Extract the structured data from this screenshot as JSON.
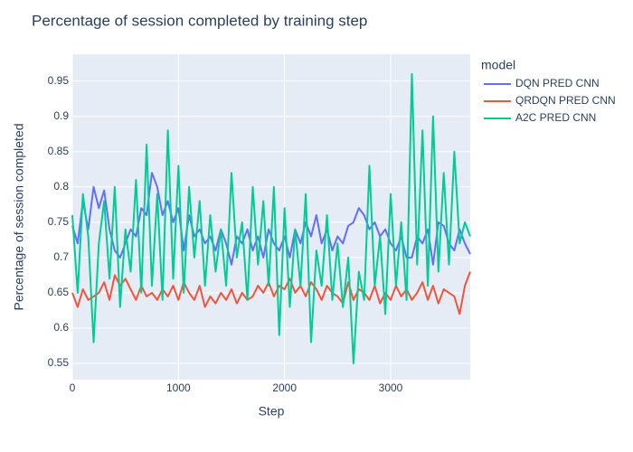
{
  "chart_data": {
    "type": "line",
    "title": "Percentage of session completed by training step",
    "x_label": "Step",
    "y_label": "Percentage of session completed",
    "legend_title": "model",
    "legend_position": "right",
    "grid": true,
    "x": [
      0,
      50,
      100,
      150,
      200,
      250,
      300,
      350,
      400,
      450,
      500,
      550,
      600,
      650,
      700,
      750,
      800,
      850,
      900,
      950,
      1000,
      1050,
      1100,
      1150,
      1200,
      1250,
      1300,
      1350,
      1400,
      1450,
      1500,
      1550,
      1600,
      1650,
      1700,
      1750,
      1800,
      1850,
      1900,
      1950,
      2000,
      2050,
      2100,
      2150,
      2200,
      2250,
      2300,
      2350,
      2400,
      2450,
      2500,
      2550,
      2600,
      2650,
      2700,
      2750,
      2800,
      2850,
      2900,
      2950,
      3000,
      3050,
      3100,
      3150,
      3200,
      3250,
      3300,
      3350,
      3400,
      3450,
      3500,
      3550,
      3600,
      3650,
      3700,
      3750
    ],
    "xlim": [
      0,
      3750
    ],
    "xticks": [
      0,
      1000,
      2000,
      3000
    ],
    "ylim": [
      0.527,
      0.988
    ],
    "yticks": [
      0.55,
      0.6,
      0.65,
      0.7,
      0.75,
      0.8,
      0.85,
      0.9,
      0.95
    ],
    "series": [
      {
        "name": "DQN PRED CNN",
        "color": "#636efa",
        "values": [
          0.745,
          0.72,
          0.78,
          0.74,
          0.8,
          0.77,
          0.795,
          0.74,
          0.71,
          0.7,
          0.72,
          0.74,
          0.73,
          0.77,
          0.76,
          0.82,
          0.8,
          0.76,
          0.78,
          0.75,
          0.77,
          0.71,
          0.76,
          0.73,
          0.74,
          0.72,
          0.73,
          0.71,
          0.74,
          0.72,
          0.69,
          0.73,
          0.72,
          0.74,
          0.71,
          0.73,
          0.7,
          0.74,
          0.72,
          0.71,
          0.73,
          0.7,
          0.74,
          0.72,
          0.75,
          0.73,
          0.76,
          0.72,
          0.74,
          0.71,
          0.73,
          0.72,
          0.745,
          0.75,
          0.77,
          0.76,
          0.74,
          0.75,
          0.73,
          0.74,
          0.72,
          0.71,
          0.73,
          0.7,
          0.7,
          0.73,
          0.72,
          0.74,
          0.69,
          0.75,
          0.745,
          0.72,
          0.71,
          0.74,
          0.72,
          0.705
        ]
      },
      {
        "name": "QRDQN PRED CNN",
        "color": "#EF553B",
        "values": [
          0.65,
          0.63,
          0.655,
          0.64,
          0.645,
          0.65,
          0.665,
          0.64,
          0.675,
          0.66,
          0.67,
          0.655,
          0.64,
          0.66,
          0.645,
          0.65,
          0.64,
          0.655,
          0.645,
          0.66,
          0.64,
          0.665,
          0.65,
          0.64,
          0.66,
          0.63,
          0.645,
          0.635,
          0.65,
          0.64,
          0.655,
          0.635,
          0.65,
          0.64,
          0.645,
          0.66,
          0.65,
          0.665,
          0.645,
          0.66,
          0.655,
          0.67,
          0.65,
          0.66,
          0.645,
          0.665,
          0.655,
          0.64,
          0.66,
          0.65,
          0.645,
          0.635,
          0.665,
          0.64,
          0.655,
          0.65,
          0.64,
          0.66,
          0.635,
          0.65,
          0.64,
          0.66,
          0.645,
          0.655,
          0.64,
          0.65,
          0.665,
          0.64,
          0.66,
          0.635,
          0.655,
          0.65,
          0.645,
          0.62,
          0.66,
          0.68
        ]
      },
      {
        "name": "A2C PRED CNN",
        "color": "#00cc96",
        "values": [
          0.76,
          0.65,
          0.79,
          0.73,
          0.58,
          0.72,
          0.78,
          0.67,
          0.8,
          0.63,
          0.74,
          0.68,
          0.81,
          0.65,
          0.86,
          0.66,
          0.79,
          0.64,
          0.88,
          0.67,
          0.83,
          0.65,
          0.8,
          0.7,
          0.78,
          0.66,
          0.76,
          0.68,
          0.74,
          0.66,
          0.82,
          0.7,
          0.75,
          0.64,
          0.8,
          0.69,
          0.78,
          0.66,
          0.8,
          0.59,
          0.77,
          0.63,
          0.74,
          0.66,
          0.79,
          0.58,
          0.71,
          0.66,
          0.76,
          0.64,
          0.72,
          0.63,
          0.7,
          0.55,
          0.68,
          0.64,
          0.83,
          0.66,
          0.73,
          0.62,
          0.79,
          0.66,
          0.75,
          0.64,
          0.96,
          0.69,
          0.88,
          0.66,
          0.9,
          0.68,
          0.82,
          0.69,
          0.85,
          0.72,
          0.75,
          0.73
        ]
      }
    ]
  }
}
